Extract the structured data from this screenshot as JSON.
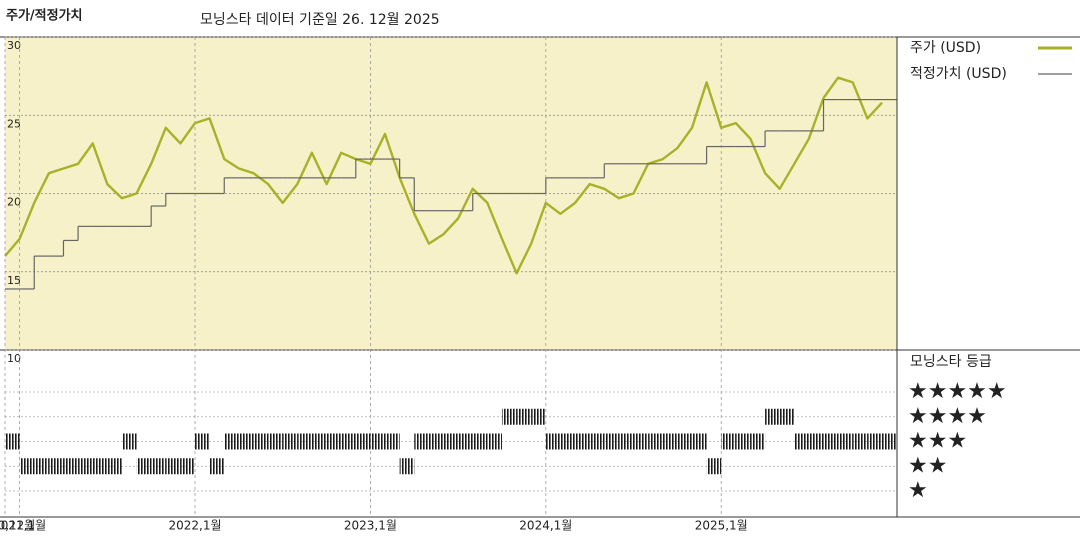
{
  "chart_data": [
    {
      "type": "line",
      "title": "주가/적정가치",
      "subtitle": "모닝스타 데이터 기준일 26. 12월 2025",
      "x": [
        "2020-12",
        "2021-01",
        "2021-02",
        "2021-03",
        "2021-04",
        "2021-05",
        "2021-06",
        "2021-07",
        "2021-08",
        "2021-09",
        "2021-10",
        "2021-11",
        "2021-12",
        "2022-01",
        "2022-02",
        "2022-03",
        "2022-04",
        "2022-05",
        "2022-06",
        "2022-07",
        "2022-08",
        "2022-09",
        "2022-10",
        "2022-11",
        "2022-12",
        "2023-01",
        "2023-02",
        "2023-03",
        "2023-04",
        "2023-05",
        "2023-06",
        "2023-07",
        "2023-08",
        "2023-09",
        "2023-10",
        "2023-11",
        "2023-12",
        "2024-01",
        "2024-02",
        "2024-03",
        "2024-04",
        "2024-05",
        "2024-06",
        "2024-07",
        "2024-08",
        "2024-09",
        "2024-10",
        "2024-11",
        "2024-12",
        "2025-01",
        "2025-02",
        "2025-03",
        "2025-04",
        "2025-05",
        "2025-06",
        "2025-07",
        "2025-08",
        "2025-09",
        "2025-10",
        "2025-11",
        "2025-12"
      ],
      "xlim": [
        "2020-12",
        "2025-12"
      ],
      "xticks": [
        {
          "value": "2020-12",
          "label": "2020,12월"
        },
        {
          "value": "2021-01",
          "label": "2021,1월"
        },
        {
          "value": "2022-01",
          "label": "2022,1월"
        },
        {
          "value": "2023-01",
          "label": "2023,1월"
        },
        {
          "value": "2024-01",
          "label": "2024,1월"
        },
        {
          "value": "2025-01",
          "label": "2025,1월"
        }
      ],
      "ylim": [
        10,
        30
      ],
      "yticks": [
        10,
        15,
        20,
        25,
        30
      ],
      "background": "#f6f1c9",
      "series": [
        {
          "name": "주가 (USD)",
          "color": "#a8b12a",
          "values": [
            16.0,
            17.1,
            19.4,
            21.3,
            21.6,
            21.9,
            23.2,
            20.6,
            19.7,
            20.0,
            21.9,
            24.2,
            23.2,
            24.5,
            24.8,
            22.2,
            21.6,
            21.3,
            20.6,
            19.4,
            20.6,
            22.6,
            20.6,
            22.6,
            22.2,
            21.9,
            23.8,
            21.0,
            18.7,
            16.8,
            17.4,
            18.4,
            20.3,
            19.4,
            17.1,
            14.9,
            16.8,
            19.4,
            18.7,
            19.4,
            20.6,
            20.3,
            19.7,
            20.0,
            21.9,
            22.2,
            22.9,
            24.2,
            27.1,
            24.2,
            24.5,
            23.5,
            21.3,
            20.3,
            21.9,
            23.5,
            26.1,
            27.4,
            27.1,
            24.8,
            25.8
          ]
        },
        {
          "name": "적정가치 (USD)",
          "color": "#666666",
          "step": true,
          "values": [
            13.9,
            13.9,
            16.0,
            16.0,
            17.0,
            17.9,
            17.9,
            17.9,
            17.9,
            17.9,
            19.2,
            20.0,
            20.0,
            20.0,
            20.0,
            21.0,
            21.0,
            21.0,
            21.0,
            21.0,
            21.0,
            21.0,
            21.0,
            21.0,
            22.2,
            22.2,
            22.2,
            21.0,
            18.9,
            18.9,
            18.9,
            18.9,
            20.0,
            20.0,
            20.0,
            20.0,
            20.0,
            21.0,
            21.0,
            21.0,
            21.0,
            21.9,
            21.9,
            21.9,
            21.9,
            21.9,
            21.9,
            21.9,
            23.0,
            23.0,
            23.0,
            23.0,
            24.0,
            24.0,
            24.0,
            24.0,
            26.0,
            26.0,
            26.0,
            26.0,
            26.0
          ]
        }
      ]
    },
    {
      "type": "rating",
      "title": "모닝스타 등급",
      "color": "#1a1a1a",
      "levels": [
        {
          "value": 5,
          "label": "★★★★★"
        },
        {
          "value": 4,
          "label": "★★★★"
        },
        {
          "value": 3,
          "label": "★★★"
        },
        {
          "value": 2,
          "label": "★★"
        },
        {
          "value": 1,
          "label": "★"
        }
      ],
      "values": [
        3,
        2,
        2,
        2,
        2,
        2,
        2,
        2,
        3,
        2,
        2,
        2,
        2,
        3,
        2,
        3,
        3,
        3,
        3,
        3,
        3,
        3,
        3,
        3,
        3,
        3,
        3,
        2,
        3,
        3,
        3,
        3,
        3,
        3,
        4,
        4,
        4,
        3,
        3,
        3,
        3,
        3,
        3,
        3,
        3,
        3,
        3,
        3,
        2,
        3,
        3,
        3,
        4,
        4,
        3,
        3,
        3,
        3,
        3,
        3,
        3
      ]
    }
  ]
}
